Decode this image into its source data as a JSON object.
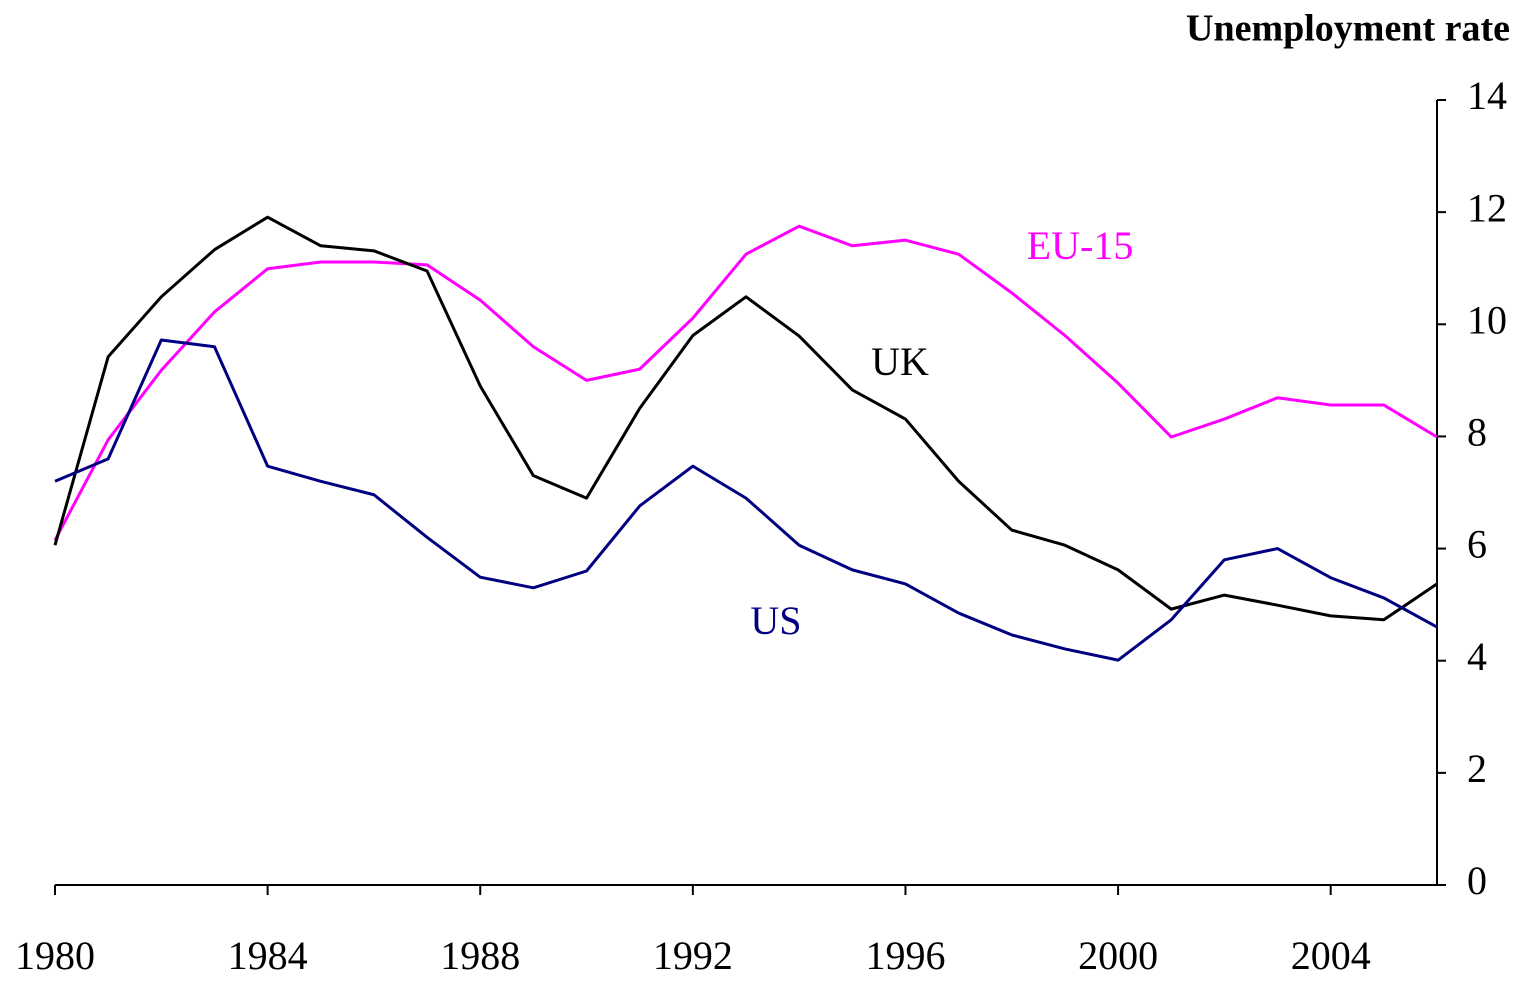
{
  "chart_data": {
    "type": "line",
    "title": "Unemployment rate",
    "x": [
      1980,
      1981,
      1982,
      1983,
      1984,
      1985,
      1986,
      1987,
      1988,
      1989,
      1990,
      1991,
      1992,
      1993,
      1994,
      1995,
      1996,
      1997,
      1998,
      1999,
      2000,
      2001,
      2002,
      2003,
      2004,
      2005,
      2006
    ],
    "series": [
      {
        "name": "EU-15",
        "color": "#ff00ff",
        "values": [
          6.15,
          7.94,
          9.18,
          10.22,
          10.99,
          11.11,
          11.11,
          11.06,
          10.43,
          9.6,
          9.0,
          9.2,
          10.11,
          11.25,
          11.75,
          11.4,
          11.5,
          11.25,
          10.56,
          9.8,
          8.95,
          7.99,
          8.31,
          8.69,
          8.56,
          8.56,
          7.99
        ]
      },
      {
        "name": "UK",
        "color": "#000000",
        "values": [
          6.06,
          9.42,
          10.49,
          11.33,
          11.91,
          11.4,
          11.31,
          10.95,
          8.9,
          7.3,
          6.9,
          8.5,
          9.8,
          10.49,
          9.79,
          8.83,
          8.31,
          7.2,
          6.33,
          6.06,
          5.62,
          4.92,
          5.17,
          4.99,
          4.8,
          4.73,
          5.37
        ]
      },
      {
        "name": "US",
        "color": "#000080",
        "values": [
          7.2,
          7.6,
          9.72,
          9.6,
          7.47,
          7.2,
          6.96,
          6.2,
          5.49,
          5.3,
          5.6,
          6.76,
          7.47,
          6.9,
          6.06,
          5.62,
          5.37,
          4.85,
          4.46,
          4.21,
          4.01,
          4.73,
          5.8,
          6.0,
          5.48,
          5.12,
          4.6
        ]
      }
    ],
    "xlim": [
      1980,
      2006
    ],
    "xticks": [
      1980,
      1984,
      1988,
      1992,
      1996,
      2000,
      2004
    ],
    "ylim": [
      0,
      14
    ],
    "yticks": [
      0,
      2,
      4,
      6,
      8,
      10,
      12,
      14
    ]
  }
}
